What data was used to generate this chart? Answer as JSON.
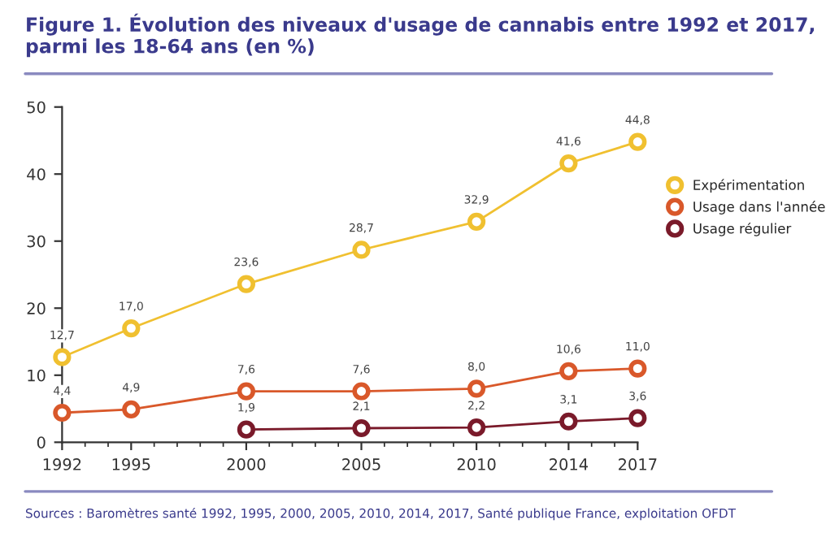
{
  "chart_data": {
    "type": "line",
    "title": "Figure 1. Évolution des niveaux d'usage de cannabis entre 1992 et 2017, parmi les 18-64 ans (en %)",
    "x": [
      1992,
      1995,
      2000,
      2005,
      2010,
      2014,
      2017
    ],
    "series": [
      {
        "name": "Expérimentation",
        "color": "#f0c030",
        "values": [
          12.7,
          17.0,
          23.6,
          28.7,
          32.9,
          41.6,
          44.8
        ],
        "value_labels": [
          "12,7",
          "17,0",
          "23,6",
          "28,7",
          "32,9",
          "41,6",
          "44,8"
        ]
      },
      {
        "name": "Usage dans l'année",
        "color": "#d9582a",
        "values": [
          4.4,
          4.9,
          7.6,
          7.6,
          8.0,
          10.6,
          11.0
        ],
        "value_labels": [
          "4,4",
          "4,9",
          "7,6",
          "7,6",
          "8,0",
          "10,6",
          "11,0"
        ]
      },
      {
        "name": "Usage régulier",
        "color": "#7a1a2a",
        "values": [
          null,
          null,
          1.9,
          2.1,
          2.2,
          3.1,
          3.6
        ],
        "value_labels": [
          null,
          null,
          "1,9",
          "2,1",
          "2,2",
          "3,1",
          "3,6"
        ]
      }
    ],
    "xlim": [
      1992,
      2017
    ],
    "xticks": [
      1992,
      1995,
      2000,
      2005,
      2010,
      2014,
      2017
    ],
    "ylim": [
      0,
      50
    ],
    "yticks": [
      0,
      10,
      20,
      30,
      40,
      50
    ],
    "grid": false,
    "legend": "right",
    "marker": "circle",
    "line_style": "solid",
    "annotations": [
      "Sources : Baromètres santé 1992, 1995, 2000, 2005, 2010, 2014, 2017, Santé publique France, exploitation OFDT"
    ]
  }
}
